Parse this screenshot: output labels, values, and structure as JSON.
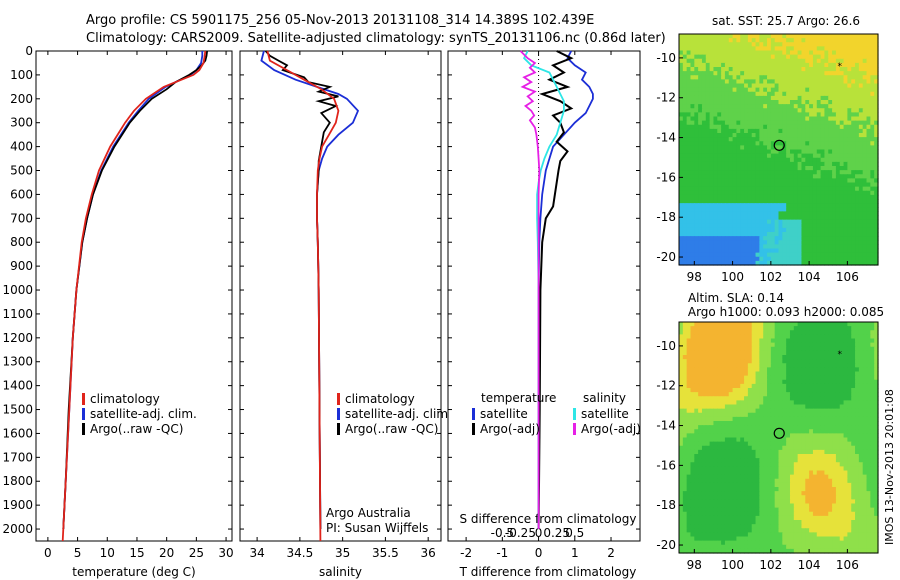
{
  "header": {
    "line1": "Argo profile: CS 5901175_256 05-Nov-2013 20131108_314 14.389S 102.439E",
    "line2": "Climatology: CARS2009. Satellite-adjusted climatology: synTS_20131106.nc (0.86d later)"
  },
  "footer_credit": "IMOS 13-Nov-2013 20:01:08",
  "colors": {
    "clim": "#e0241b",
    "sat": "#1b2ed6",
    "argo": "#000000",
    "sal_sat": "#2ee6e6",
    "sal_argo": "#e620e6"
  },
  "depth_axis": {
    "range": [
      0,
      2050
    ],
    "ticks": [
      0,
      100,
      200,
      300,
      400,
      500,
      600,
      700,
      800,
      900,
      1000,
      1100,
      1200,
      1300,
      1400,
      1500,
      1600,
      1700,
      1800,
      1900,
      2000
    ]
  },
  "chart_data": [
    {
      "id": "temperature",
      "type": "line",
      "xlabel": "temperature (deg C)",
      "xlim": [
        -2,
        31
      ],
      "xticks": [
        0,
        5,
        10,
        15,
        20,
        25,
        30
      ],
      "ylim": [
        0,
        2050
      ],
      "yreversed": true,
      "legend": [
        "climatology",
        "satellite-adj. clim.",
        "Argo(..raw -QC)"
      ],
      "series": [
        {
          "name": "climatology",
          "depth": [
            0,
            20,
            50,
            80,
            100,
            150,
            200,
            250,
            300,
            400,
            500,
            600,
            700,
            800,
            1000,
            1200,
            1500,
            1800,
            2050
          ],
          "values": [
            26.5,
            26.4,
            26.2,
            25.5,
            24.5,
            19.5,
            16.5,
            14.5,
            13,
            10.5,
            8.6,
            7.4,
            6.4,
            5.7,
            4.8,
            4.2,
            3.6,
            3.0,
            2.5
          ]
        },
        {
          "name": "satellite-adj. clim.",
          "depth": [
            0,
            20,
            50,
            80,
            100,
            150,
            200,
            250,
            300,
            400,
            500,
            600,
            700,
            800,
            1000,
            1200,
            1500,
            1800,
            2000
          ],
          "values": [
            26.0,
            26.0,
            25.8,
            25.0,
            24.0,
            19.8,
            17.0,
            15.2,
            13.6,
            11.0,
            9.0,
            7.6,
            6.6,
            5.8,
            4.8,
            4.2,
            3.6,
            3.0,
            2.6
          ]
        },
        {
          "name": "Argo(..raw -QC)",
          "depth": [
            0,
            20,
            40,
            60,
            80,
            100,
            130,
            160,
            200,
            250,
            300,
            400,
            500,
            600,
            700,
            800,
            1000,
            1200,
            1500,
            1800,
            2000
          ],
          "values": [
            26.8,
            26.7,
            26.5,
            25.9,
            25.0,
            23.8,
            21.5,
            20.0,
            17.5,
            15.5,
            13.8,
            11.2,
            9.1,
            7.6,
            6.6,
            5.8,
            4.8,
            4.2,
            3.5,
            3.0,
            2.6
          ]
        }
      ]
    },
    {
      "id": "salinity",
      "type": "line",
      "xlabel": "salinity",
      "xlim": [
        33.8,
        36.15
      ],
      "xticks": [
        34,
        34.5,
        35,
        35.5,
        36
      ],
      "ylim": [
        0,
        2050
      ],
      "yreversed": true,
      "legend": [
        "climatology",
        "satellite-adj. clim.",
        "Argo(..raw -QC)"
      ],
      "annotation_line1": "Argo Australia",
      "annotation_line2": "PI: Susan Wijffels",
      "series": [
        {
          "name": "climatology",
          "depth": [
            0,
            40,
            80,
            120,
            160,
            200,
            250,
            300,
            350,
            400,
            450,
            500,
            600,
            700,
            800,
            1000,
            1500,
            2050
          ],
          "values": [
            34.12,
            34.15,
            34.35,
            34.55,
            34.75,
            34.9,
            34.95,
            34.92,
            34.84,
            34.76,
            34.73,
            34.71,
            34.7,
            34.7,
            34.71,
            34.72,
            34.73,
            34.74
          ]
        },
        {
          "name": "satellite-adj. clim.",
          "depth": [
            0,
            40,
            80,
            120,
            150,
            180,
            200,
            250,
            300,
            350,
            400,
            450,
            500,
            600,
            700,
            800,
            1000,
            1500,
            2000
          ],
          "values": [
            34.08,
            34.05,
            34.2,
            34.45,
            34.7,
            34.95,
            35.05,
            35.18,
            35.12,
            34.95,
            34.82,
            34.76,
            34.72,
            34.7,
            34.7,
            34.71,
            34.72,
            34.73,
            34.74
          ]
        },
        {
          "name": "Argo(..raw -QC)",
          "depth": [
            0,
            20,
            40,
            60,
            80,
            110,
            130,
            150,
            170,
            190,
            210,
            230,
            260,
            300,
            340,
            380,
            420,
            460,
            500,
            600,
            700,
            800,
            1000,
            1500,
            2000
          ],
          "values": [
            34.1,
            34.15,
            34.25,
            34.35,
            34.3,
            34.55,
            34.6,
            34.85,
            34.72,
            34.95,
            34.72,
            34.92,
            34.75,
            34.85,
            34.78,
            34.76,
            34.74,
            34.72,
            34.72,
            34.7,
            34.7,
            34.71,
            34.72,
            34.73,
            34.74
          ]
        }
      ]
    },
    {
      "id": "difference",
      "type": "line",
      "xlabel_top": "S difference from climatology",
      "xlabel": "T difference from climatology",
      "xlim": [
        -2.5,
        2.8
      ],
      "xticks": [
        -2,
        -1,
        0,
        1,
        2
      ],
      "s_ticks": [
        "-0.5",
        "-0.25",
        "0",
        "0.25",
        "0.5"
      ],
      "ylim": [
        0,
        2050
      ],
      "yreversed": true,
      "legend_title_t": "temperature",
      "legend_title_s": "salinity",
      "legend_t": [
        "satellite",
        "Argo(-adj)"
      ],
      "legend_s": [
        "satellite",
        "Argo(-adj)"
      ],
      "series": [
        {
          "name": "temperature satellite",
          "depth": [
            0,
            30,
            60,
            90,
            120,
            150,
            180,
            200,
            230,
            260,
            300,
            350,
            400,
            500,
            600,
            700,
            800,
            1000,
            1500,
            2000
          ],
          "values": [
            0.9,
            0.8,
            1.0,
            1.3,
            1.2,
            1.4,
            1.5,
            1.5,
            1.4,
            1.3,
            1.0,
            0.7,
            0.4,
            0.2,
            0.1,
            0.05,
            0.02,
            0,
            0,
            0
          ]
        },
        {
          "name": "temperature Argo(-adj)",
          "depth": [
            0,
            30,
            60,
            90,
            120,
            150,
            180,
            210,
            240,
            270,
            300,
            340,
            380,
            420,
            460,
            500,
            550,
            600,
            650,
            700,
            800,
            1000,
            1500,
            2000
          ],
          "values": [
            0.5,
            0.9,
            0.4,
            0.7,
            0.3,
            0.8,
            0.1,
            0.6,
            0.9,
            0.4,
            0.6,
            0.7,
            0.5,
            0.8,
            0.6,
            0.55,
            0.5,
            0.45,
            0.4,
            0.2,
            0.1,
            0.05,
            0.03,
            0
          ]
        },
        {
          "name": "salinity satellite",
          "depth": [
            0,
            30,
            60,
            90,
            120,
            150,
            180,
            210,
            250,
            300,
            350,
            400,
            450,
            500,
            550,
            600,
            700,
            800,
            1000,
            1500,
            2000
          ],
          "values": [
            -0.15,
            -0.2,
            -0.1,
            0.15,
            0.2,
            0.25,
            0.3,
            0.35,
            0.35,
            0.3,
            0.25,
            0.15,
            0.08,
            0.03,
            0.0,
            -0.02,
            -0.02,
            -0.01,
            0,
            0,
            0
          ]
        },
        {
          "name": "salinity Argo(-adj)",
          "depth": [
            0,
            30,
            50,
            70,
            90,
            110,
            130,
            150,
            170,
            190,
            210,
            230,
            250,
            270,
            290,
            320,
            350,
            400,
            450,
            500,
            600,
            700,
            1000,
            1500,
            2000
          ],
          "values": [
            -0.25,
            -0.15,
            -0.05,
            -0.12,
            -0.05,
            -0.2,
            -0.1,
            -0.22,
            -0.05,
            -0.15,
            -0.08,
            -0.18,
            -0.1,
            -0.06,
            -0.12,
            -0.05,
            -0.03,
            -0.01,
            0,
            0.01,
            0,
            0,
            0,
            0,
            0
          ]
        }
      ]
    },
    {
      "id": "sst_map",
      "type": "heatmap",
      "title": "sat. SST: 25.7 Argo: 26.6",
      "xlim": [
        97.2,
        107.6
      ],
      "xticks": [
        98,
        100,
        102,
        104,
        106
      ],
      "ylim": [
        -20.4,
        -8.8
      ],
      "yticks": [
        -10,
        -12,
        -14,
        -16,
        -18,
        -20
      ],
      "argo_position": {
        "lon": 102.439,
        "lat": -14.389
      },
      "marker_glyph": "*"
    },
    {
      "id": "sla_map",
      "type": "heatmap",
      "title_line1": "Altim. SLA: 0.14",
      "title_line2": "Argo h1000: 0.093 h2000: 0.085",
      "xlim": [
        97.2,
        107.6
      ],
      "xticks": [
        98,
        100,
        102,
        104,
        106
      ],
      "ylim": [
        -20.4,
        -8.8
      ],
      "yticks": [
        -10,
        -12,
        -14,
        -16,
        -18,
        -20
      ],
      "argo_position": {
        "lon": 102.439,
        "lat": -14.389
      },
      "marker_glyph": "*"
    }
  ]
}
